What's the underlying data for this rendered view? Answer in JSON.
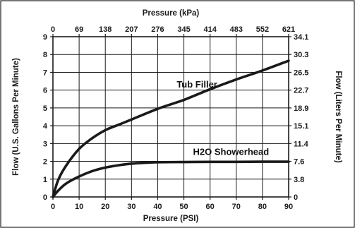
{
  "chart_data": {
    "type": "line",
    "x_bottom": {
      "label": "Pressure (PSI)",
      "range": [
        0,
        90
      ],
      "ticks": [
        "0",
        "10",
        "20",
        "30",
        "40",
        "50",
        "60",
        "70",
        "80",
        "90"
      ]
    },
    "x_top": {
      "label": "Pressure (kPa)",
      "ticks": [
        "0",
        "69",
        "138",
        "207",
        "276",
        "345",
        "414",
        "483",
        "552",
        "621"
      ]
    },
    "y_left": {
      "label": "Flow (U.S. Gallons Per Minute)",
      "range": [
        0,
        9
      ],
      "ticks": [
        "0",
        "1",
        "2",
        "3",
        "4",
        "5",
        "6",
        "7",
        "8",
        "9"
      ]
    },
    "y_right": {
      "label": "Flow (Liters Per Minute)",
      "ticks": [
        "0",
        "3.8",
        "7.6",
        "11.4",
        "15.1",
        "18.9",
        "22.7",
        "26.5",
        "30.3",
        "34.1"
      ]
    },
    "grid": true,
    "series": [
      {
        "name": "Tub Filler",
        "x": [
          0,
          2,
          5,
          10,
          15,
          20,
          25,
          30,
          40,
          50,
          60,
          70,
          80,
          90
        ],
        "y": [
          0,
          0.95,
          1.75,
          2.7,
          3.3,
          3.75,
          4.05,
          4.35,
          4.95,
          5.45,
          6.05,
          6.6,
          7.1,
          7.65
        ]
      },
      {
        "name": "H2O Showerhead",
        "x": [
          0,
          2,
          5,
          10,
          15,
          20,
          25,
          30,
          35,
          40,
          50,
          60,
          70,
          80,
          90
        ],
        "y": [
          0,
          0.35,
          0.75,
          1.15,
          1.45,
          1.65,
          1.78,
          1.87,
          1.92,
          1.95,
          1.96,
          1.97,
          1.97,
          1.98,
          1.98
        ]
      }
    ]
  }
}
